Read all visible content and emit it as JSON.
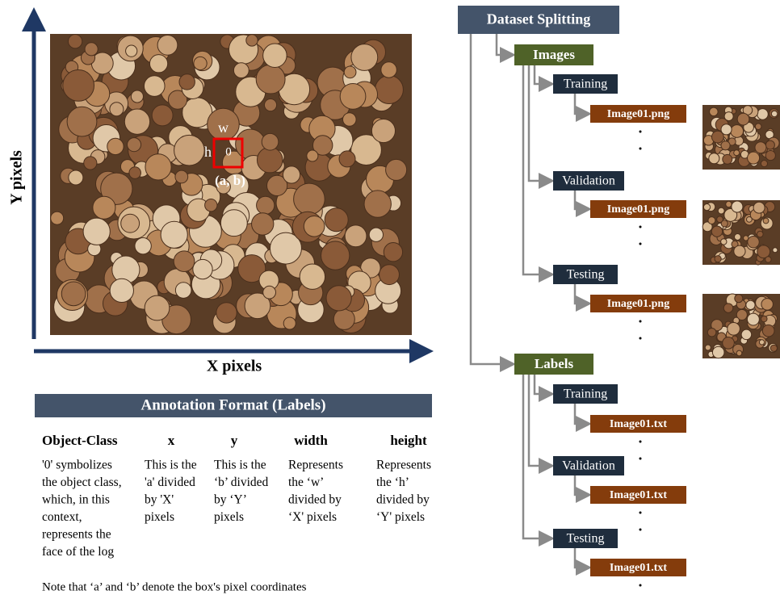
{
  "left_panel": {
    "image_labels": {
      "w": "w",
      "h": "h",
      "class": "0",
      "point": "(a, b)"
    },
    "y_axis_label": "Y pixels",
    "x_axis_label": "X pixels"
  },
  "annotation": {
    "title": "Annotation Format (Labels)",
    "columns": [
      {
        "header": "Object-Class",
        "lines": [
          "'0' symbolizes",
          "the object class,",
          "which, in this",
          "context,",
          "represents the",
          "face of the log"
        ]
      },
      {
        "header": "x",
        "lines": [
          "This is the",
          "'a' divided",
          "by 'X'",
          "pixels"
        ]
      },
      {
        "header": "y",
        "lines": [
          "This is the",
          "‘b’ divided",
          "by ‘Y’",
          "pixels"
        ]
      },
      {
        "header": "width",
        "lines": [
          "Represents",
          "the ‘w’",
          "divided by",
          "‘X' pixels"
        ]
      },
      {
        "header": "height",
        "lines": [
          "Represents",
          "the ‘h’",
          "divided by",
          "‘Y' pixels"
        ]
      }
    ],
    "note": "Note that ‘a’ and ‘b’ denote the box's pixel coordinates"
  },
  "tree": {
    "root": "Dataset Splitting",
    "groups": [
      {
        "label": "Images",
        "splits": [
          {
            "label": "Training",
            "file": "Image01.png"
          },
          {
            "label": "Validation",
            "file": "Image01.png"
          },
          {
            "label": "Testing",
            "file": "Image01.png"
          }
        ]
      },
      {
        "label": "Labels",
        "splits": [
          {
            "label": "Training",
            "file": "Image01.txt"
          },
          {
            "label": "Validation",
            "file": "Image01.txt"
          },
          {
            "label": "Testing",
            "file": "Image01.txt"
          }
        ]
      }
    ]
  }
}
